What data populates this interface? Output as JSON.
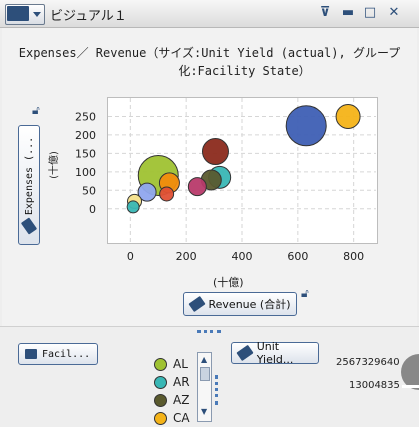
{
  "window": {
    "title": "ビジュアル１",
    "controls": [
      "filter-icon",
      "minimize-icon",
      "maximize-icon",
      "close-icon"
    ]
  },
  "plot": {
    "title_line1": "Expenses／ Revenue（サイズ:Unit Yield (actual), グループ",
    "title_line2": "化:Facility State）"
  },
  "y_axis": {
    "button_label": "Expenses (...",
    "unit_label": "(十億)"
  },
  "x_axis": {
    "button_label": "Revenue (合計)",
    "unit_label": "(十億)"
  },
  "bottom": {
    "group_button": "Facil...",
    "size_button": "Unit Yield...",
    "size_legend_max": "2567329640",
    "size_legend_min": "13004835",
    "legend_items": [
      {
        "label": "AL",
        "color": "#9fc232"
      },
      {
        "label": "AR",
        "color": "#39b7b5"
      },
      {
        "label": "AZ",
        "color": "#5a5a2e"
      },
      {
        "label": "CA",
        "color": "#f4b318"
      }
    ]
  },
  "chart_data": {
    "type": "scatter",
    "title": "Expenses／ Revenue（サイズ:Unit Yield (actual), グループ化:Facility State）",
    "xlabel": "Revenue (合計) (十億)",
    "ylabel": "Expenses (... (十億)",
    "xlim": [
      -80,
      880
    ],
    "ylim": [
      -90,
      300
    ],
    "x_ticks": [
      0,
      200,
      400,
      600,
      800
    ],
    "y_ticks": [
      0,
      50,
      100,
      150,
      200,
      250
    ],
    "grid": true,
    "points": [
      {
        "x": 630,
        "y": 225,
        "size": 20,
        "color": "#3e5fb4"
      },
      {
        "x": 780,
        "y": 250,
        "size": 12,
        "color": "#f4b318"
      },
      {
        "x": 100,
        "y": 90,
        "size": 20,
        "color": "#9fc232"
      },
      {
        "x": 305,
        "y": 155,
        "size": 13,
        "color": "#8b2a1c"
      },
      {
        "x": 320,
        "y": 85,
        "size": 11,
        "color": "#39b7b5"
      },
      {
        "x": 290,
        "y": 78,
        "size": 10,
        "color": "#5a5a2e"
      },
      {
        "x": 140,
        "y": 70,
        "size": 10,
        "color": "#f28c0c"
      },
      {
        "x": 240,
        "y": 60,
        "size": 9,
        "color": "#b83a6a"
      },
      {
        "x": 60,
        "y": 45,
        "size": 9,
        "color": "#8fa6ee"
      },
      {
        "x": 130,
        "y": 40,
        "size": 7,
        "color": "#e05035"
      },
      {
        "x": 15,
        "y": 20,
        "size": 7,
        "color": "#f4e08a"
      },
      {
        "x": 10,
        "y": 5,
        "size": 6,
        "color": "#39b7b5"
      }
    ]
  }
}
